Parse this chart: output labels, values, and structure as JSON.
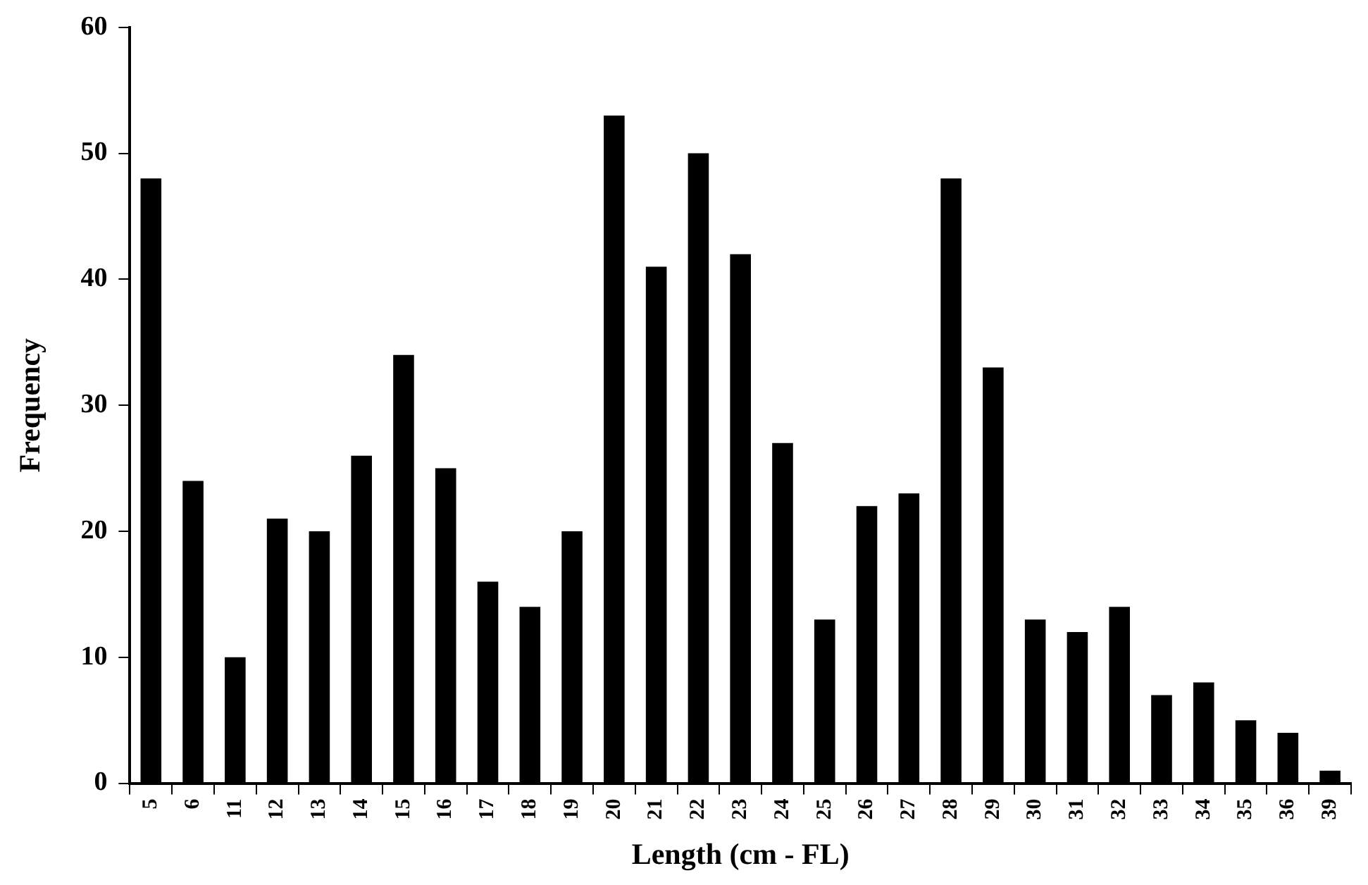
{
  "chart_data": {
    "type": "bar",
    "xlabel": "Length (cm - FL)",
    "ylabel": "Frequency",
    "categories": [
      "5",
      "6",
      "11",
      "12",
      "13",
      "14",
      "15",
      "16",
      "17",
      "18",
      "19",
      "20",
      "21",
      "22",
      "23",
      "24",
      "25",
      "26",
      "27",
      "28",
      "29",
      "30",
      "31",
      "32",
      "33",
      "34",
      "35",
      "36",
      "39"
    ],
    "values": [
      48,
      24,
      10,
      21,
      20,
      26,
      34,
      25,
      16,
      14,
      20,
      53,
      41,
      50,
      42,
      27,
      13,
      22,
      23,
      48,
      33,
      13,
      12,
      14,
      7,
      8,
      5,
      4,
      1
    ],
    "color": "#000000",
    "ylim": [
      0,
      60
    ],
    "yticks": [
      0,
      10,
      20,
      30,
      40,
      50,
      60
    ],
    "grid": false,
    "legend": false
  }
}
